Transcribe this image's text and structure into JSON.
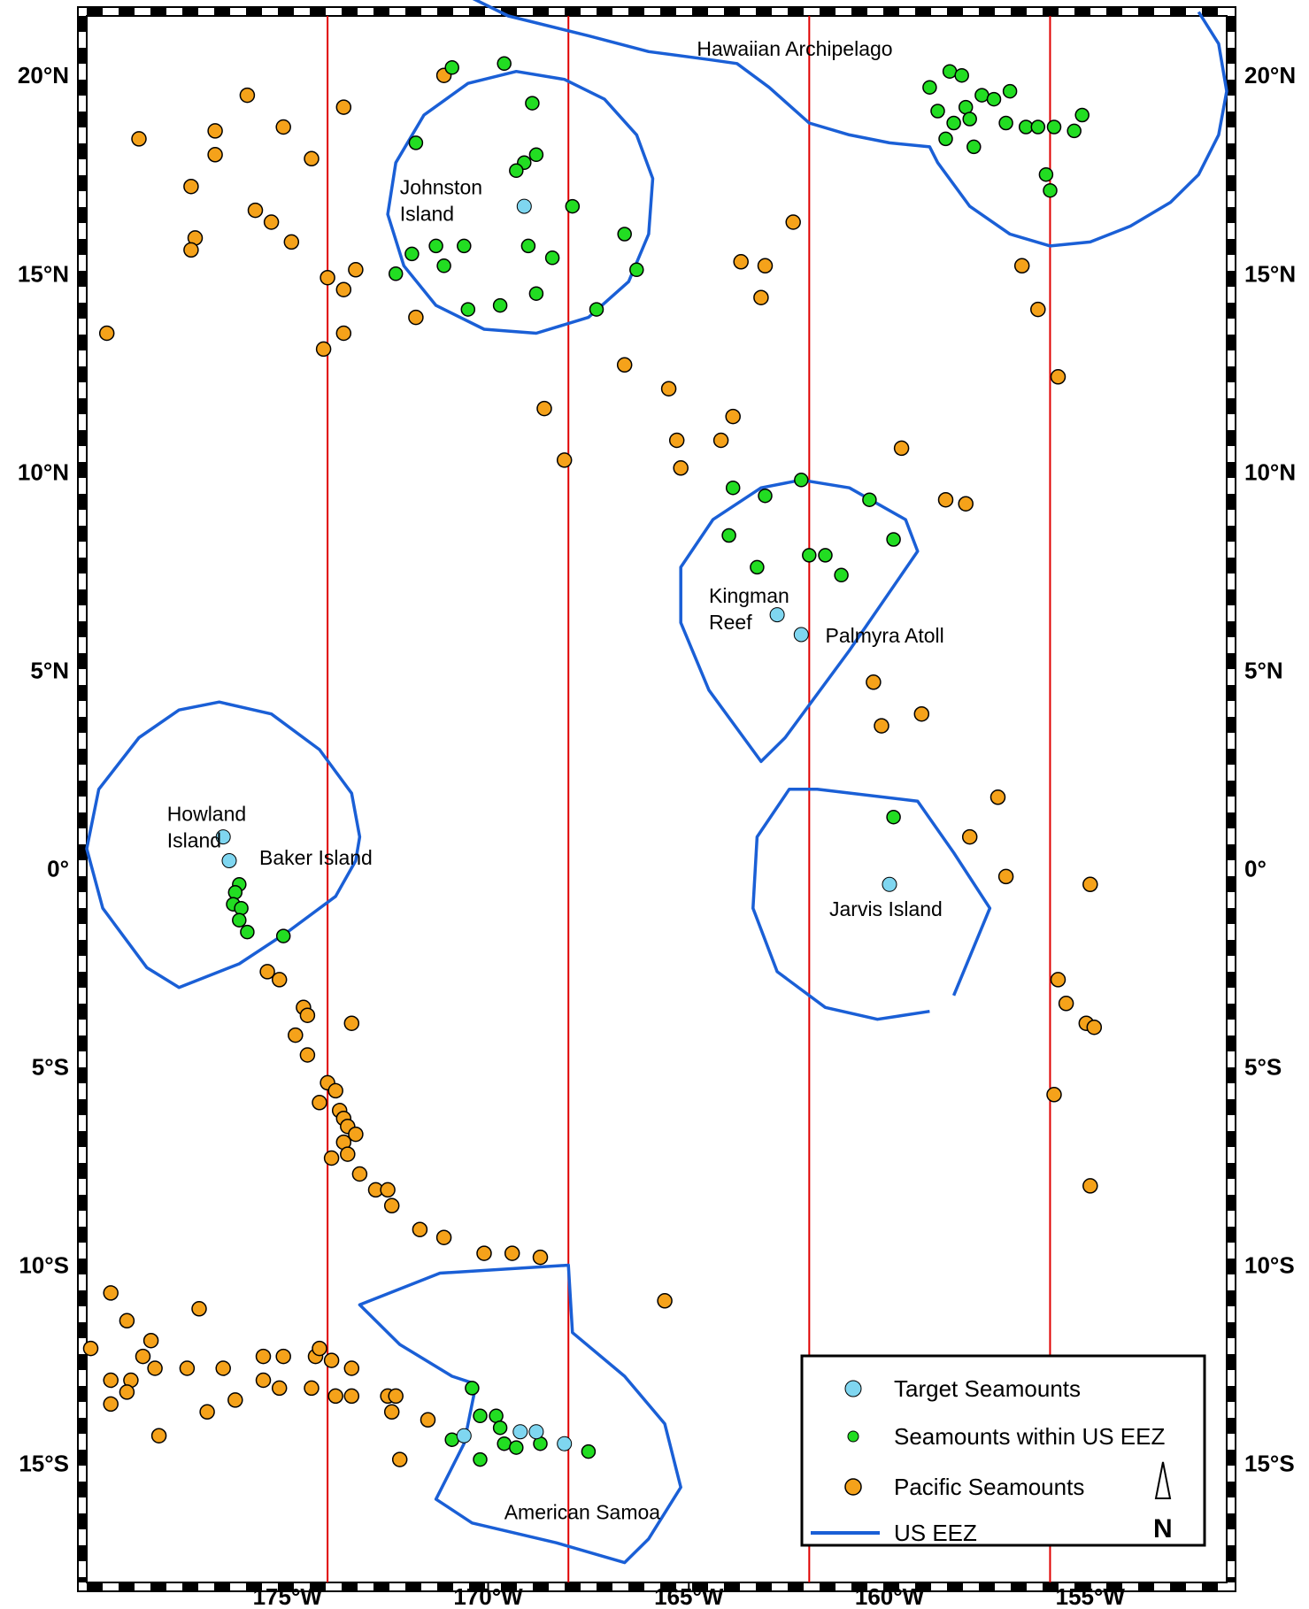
{
  "map": {
    "lon_range": [
      -180.0,
      -151.6
    ],
    "lat_range": [
      -18.0,
      21.5
    ],
    "lon_ticks": [
      {
        "lon": -175,
        "label": "175°W"
      },
      {
        "lon": -170,
        "label": "170°W"
      },
      {
        "lon": -165,
        "label": "165°W"
      },
      {
        "lon": -160,
        "label": "160°W"
      },
      {
        "lon": -155,
        "label": "155°W"
      }
    ],
    "lat_ticks": [
      {
        "lat": 20,
        "label": "20°N"
      },
      {
        "lat": 15,
        "label": "15°N"
      },
      {
        "lat": 10,
        "label": "10°N"
      },
      {
        "lat": 5,
        "label": "5°N"
      },
      {
        "lat": 0,
        "label": "0°"
      },
      {
        "lat": -5,
        "label": "5°S"
      },
      {
        "lat": -10,
        "label": "10°S"
      },
      {
        "lat": -15,
        "label": "15°S"
      }
    ],
    "meridian_lines_lon": [
      -174,
      -168,
      -162,
      -156
    ],
    "colors": {
      "eez": "#1a5fd6",
      "meridian": "#e00000",
      "target": "#7fd6f0",
      "us_eez_seamount": "#22dd22",
      "pacific_seamount": "#f5a21a",
      "frame": "#000000"
    },
    "place_labels": [
      {
        "id": "hawaiian-archipelago",
        "lines": [
          "Hawaiian Archipelago"
        ],
        "lon": -164.8,
        "lat": 20.5
      },
      {
        "id": "johnston-island",
        "lines": [
          "Johnston",
          "Island"
        ],
        "lon": -172.2,
        "lat": 17.0
      },
      {
        "id": "kingman-reef",
        "lines": [
          "Kingman",
          "Reef"
        ],
        "lon": -164.5,
        "lat": 6.7
      },
      {
        "id": "palmyra-atoll",
        "lines": [
          "Palmyra Atoll"
        ],
        "lon": -161.6,
        "lat": 5.7
      },
      {
        "id": "howland-island",
        "lines": [
          "Howland",
          "Island"
        ],
        "lon": -178.0,
        "lat": 1.2
      },
      {
        "id": "baker-island",
        "lines": [
          "Baker Island"
        ],
        "lon": -175.7,
        "lat": 0.1
      },
      {
        "id": "jarvis-island",
        "lines": [
          "Jarvis Island"
        ],
        "lon": -161.5,
        "lat": -1.2
      },
      {
        "id": "american-samoa",
        "lines": [
          "American Samoa"
        ],
        "lon": -169.6,
        "lat": -16.4
      }
    ],
    "legend": {
      "position": "bottom-right",
      "items": [
        {
          "symbol": "target",
          "label": "Target Seamounts"
        },
        {
          "symbol": "us_eez_seamount",
          "label": "Seamounts within US EEZ"
        },
        {
          "symbol": "pacific_seamount",
          "label": "Pacific Seamounts"
        },
        {
          "symbol": "eez",
          "label": "US EEZ"
        }
      ]
    },
    "north_arrow": "N",
    "eez_outlines": [
      {
        "id": "eez-hawaii",
        "closed": false,
        "points": [
          [
            -170.5,
            22.0
          ],
          [
            -169.5,
            21.5
          ],
          [
            -167.5,
            21.0
          ],
          [
            -166.0,
            20.6
          ],
          [
            -164.5,
            20.4
          ],
          [
            -163.8,
            20.3
          ],
          [
            -163.0,
            19.7
          ],
          [
            -162.0,
            18.8
          ],
          [
            -161.0,
            18.5
          ],
          [
            -160.0,
            18.3
          ],
          [
            -159.0,
            18.2
          ],
          [
            -158.8,
            17.8
          ],
          [
            -158.0,
            16.7
          ],
          [
            -157.0,
            16.0
          ],
          [
            -156.0,
            15.7
          ],
          [
            -155.0,
            15.8
          ],
          [
            -154.0,
            16.2
          ],
          [
            -153.0,
            16.8
          ],
          [
            -152.3,
            17.5
          ],
          [
            -151.8,
            18.5
          ],
          [
            -151.6,
            19.6
          ],
          [
            -151.8,
            20.8
          ],
          [
            -152.3,
            21.6
          ]
        ]
      },
      {
        "id": "eez-johnston",
        "closed": true,
        "points": [
          [
            -169.3,
            20.1
          ],
          [
            -168.1,
            19.9
          ],
          [
            -167.1,
            19.4
          ],
          [
            -166.3,
            18.5
          ],
          [
            -165.9,
            17.4
          ],
          [
            -166.0,
            16.0
          ],
          [
            -166.5,
            14.8
          ],
          [
            -167.5,
            13.9
          ],
          [
            -168.8,
            13.5
          ],
          [
            -170.1,
            13.6
          ],
          [
            -171.3,
            14.2
          ],
          [
            -172.1,
            15.2
          ],
          [
            -172.5,
            16.5
          ],
          [
            -172.3,
            17.8
          ],
          [
            -171.6,
            19.0
          ],
          [
            -170.5,
            19.8
          ]
        ]
      },
      {
        "id": "eez-kingman-palmyra",
        "closed": true,
        "points": [
          [
            -162.2,
            9.8
          ],
          [
            -161.0,
            9.6
          ],
          [
            -159.6,
            8.8
          ],
          [
            -159.3,
            8.0
          ],
          [
            -161.0,
            5.5
          ],
          [
            -162.6,
            3.3
          ],
          [
            -163.2,
            2.7
          ],
          [
            -164.5,
            4.5
          ],
          [
            -165.2,
            6.2
          ],
          [
            -165.2,
            7.6
          ],
          [
            -164.4,
            8.8
          ],
          [
            -163.2,
            9.6
          ]
        ]
      },
      {
        "id": "eez-jarvis",
        "closed": false,
        "points": [
          [
            -158.4,
            -3.2
          ],
          [
            -157.5,
            -1.0
          ],
          [
            -158.4,
            0.4
          ],
          [
            -159.3,
            1.7
          ],
          [
            -161.8,
            2.0
          ],
          [
            -162.5,
            2.0
          ],
          [
            -163.3,
            0.8
          ],
          [
            -163.4,
            -1.0
          ],
          [
            -162.8,
            -2.6
          ],
          [
            -161.6,
            -3.5
          ],
          [
            -160.3,
            -3.8
          ],
          [
            -159.0,
            -3.6
          ]
        ]
      },
      {
        "id": "eez-howland-baker",
        "closed": true,
        "points": [
          [
            -176.7,
            4.2
          ],
          [
            -175.4,
            3.9
          ],
          [
            -174.2,
            3.0
          ],
          [
            -173.4,
            1.9
          ],
          [
            -173.2,
            0.8
          ],
          [
            -173.3,
            0.2
          ],
          [
            -173.8,
            -0.7
          ],
          [
            -175.0,
            -1.6
          ],
          [
            -176.2,
            -2.4
          ],
          [
            -177.7,
            -3.0
          ],
          [
            -178.5,
            -2.5
          ],
          [
            -179.6,
            -1.0
          ],
          [
            -180.0,
            0.5
          ],
          [
            -179.7,
            2.0
          ],
          [
            -178.7,
            3.3
          ],
          [
            -177.7,
            4.0
          ]
        ]
      },
      {
        "id": "eez-american-samoa",
        "closed": true,
        "points": [
          [
            -173.2,
            -11.0
          ],
          [
            -171.2,
            -10.2
          ],
          [
            -168.0,
            -10.0
          ],
          [
            -167.9,
            -11.7
          ],
          [
            -166.6,
            -12.8
          ],
          [
            -165.6,
            -14.0
          ],
          [
            -165.2,
            -15.6
          ],
          [
            -166.0,
            -16.9
          ],
          [
            -166.6,
            -17.5
          ],
          [
            -168.3,
            -17.0
          ],
          [
            -170.4,
            -16.5
          ],
          [
            -171.3,
            -15.9
          ],
          [
            -170.6,
            -14.5
          ],
          [
            -170.3,
            -13.0
          ],
          [
            -170.9,
            -12.8
          ],
          [
            -172.2,
            -12.0
          ]
        ]
      }
    ],
    "target_seamounts": [
      [
        -169.1,
        16.7
      ],
      [
        -162.8,
        6.4
      ],
      [
        -162.2,
        5.9
      ],
      [
        -176.6,
        0.8
      ],
      [
        -176.45,
        0.2
      ],
      [
        -160.0,
        -0.4
      ],
      [
        -170.6,
        -14.3
      ],
      [
        -169.2,
        -14.2
      ],
      [
        -168.8,
        -14.2
      ],
      [
        -168.1,
        -14.5
      ]
    ],
    "us_eez_seamounts": [
      [
        -169.6,
        20.3
      ],
      [
        -170.9,
        20.2
      ],
      [
        -168.9,
        19.3
      ],
      [
        -171.8,
        18.3
      ],
      [
        -169.1,
        17.8
      ],
      [
        -168.8,
        18.0
      ],
      [
        -169.3,
        17.6
      ],
      [
        -167.9,
        16.7
      ],
      [
        -166.6,
        16.0
      ],
      [
        -166.3,
        15.1
      ],
      [
        -167.3,
        14.1
      ],
      [
        -168.4,
        15.4
      ],
      [
        -169.0,
        15.7
      ],
      [
        -170.6,
        15.7
      ],
      [
        -171.3,
        15.7
      ],
      [
        -171.1,
        15.2
      ],
      [
        -171.9,
        15.5
      ],
      [
        -172.3,
        15.0
      ],
      [
        -170.5,
        14.1
      ],
      [
        -169.7,
        14.2
      ],
      [
        -168.8,
        14.5
      ],
      [
        -158.5,
        20.1
      ],
      [
        -158.2,
        20.0
      ],
      [
        -159.0,
        19.7
      ],
      [
        -158.8,
        19.1
      ],
      [
        -158.1,
        19.2
      ],
      [
        -157.7,
        19.5
      ],
      [
        -157.4,
        19.4
      ],
      [
        -157.0,
        19.6
      ],
      [
        -158.4,
        18.8
      ],
      [
        -158.0,
        18.9
      ],
      [
        -157.1,
        18.8
      ],
      [
        -156.6,
        18.7
      ],
      [
        -156.3,
        18.7
      ],
      [
        -155.9,
        18.7
      ],
      [
        -155.4,
        18.6
      ],
      [
        -155.2,
        19.0
      ],
      [
        -158.6,
        18.4
      ],
      [
        -157.9,
        18.2
      ],
      [
        -156.1,
        17.5
      ],
      [
        -156.0,
        17.1
      ],
      [
        -163.9,
        9.6
      ],
      [
        -163.1,
        9.4
      ],
      [
        -162.2,
        9.8
      ],
      [
        -160.5,
        9.3
      ],
      [
        -164.0,
        8.4
      ],
      [
        -159.9,
        8.3
      ],
      [
        -162.0,
        7.9
      ],
      [
        -161.6,
        7.9
      ],
      [
        -163.3,
        7.6
      ],
      [
        -161.2,
        7.4
      ],
      [
        -159.9,
        1.3
      ],
      [
        -176.2,
        -0.4
      ],
      [
        -176.3,
        -0.6
      ],
      [
        -176.35,
        -0.9
      ],
      [
        -176.15,
        -1.0
      ],
      [
        -176.2,
        -1.3
      ],
      [
        -176.0,
        -1.6
      ],
      [
        -175.1,
        -1.7
      ],
      [
        -170.4,
        -13.1
      ],
      [
        -170.2,
        -13.8
      ],
      [
        -169.8,
        -13.8
      ],
      [
        -169.7,
        -14.1
      ],
      [
        -170.9,
        -14.4
      ],
      [
        -169.6,
        -14.5
      ],
      [
        -169.3,
        -14.6
      ],
      [
        -168.7,
        -14.5
      ],
      [
        -170.2,
        -14.9
      ],
      [
        -167.5,
        -14.7
      ]
    ],
    "pacific_seamounts": [
      [
        -171.1,
        20.0
      ],
      [
        -176.0,
        19.5
      ],
      [
        -173.6,
        19.2
      ],
      [
        -175.1,
        18.7
      ],
      [
        -176.8,
        18.6
      ],
      [
        -178.7,
        18.4
      ],
      [
        -176.8,
        18.0
      ],
      [
        -174.4,
        17.9
      ],
      [
        -177.4,
        17.2
      ],
      [
        -175.8,
        16.6
      ],
      [
        -175.4,
        16.3
      ],
      [
        -174.9,
        15.8
      ],
      [
        -177.3,
        15.9
      ],
      [
        -177.4,
        15.6
      ],
      [
        -174.0,
        14.9
      ],
      [
        -173.3,
        15.1
      ],
      [
        -173.6,
        14.6
      ],
      [
        -171.8,
        13.9
      ],
      [
        -173.6,
        13.5
      ],
      [
        -179.5,
        13.5
      ],
      [
        -174.1,
        13.1
      ],
      [
        -162.4,
        16.3
      ],
      [
        -163.7,
        15.3
      ],
      [
        -163.1,
        15.2
      ],
      [
        -163.2,
        14.4
      ],
      [
        -166.6,
        12.7
      ],
      [
        -165.5,
        12.1
      ],
      [
        -168.6,
        11.6
      ],
      [
        -163.9,
        11.4
      ],
      [
        -165.3,
        10.8
      ],
      [
        -164.2,
        10.8
      ],
      [
        -165.2,
        10.1
      ],
      [
        -168.1,
        10.3
      ],
      [
        -159.7,
        10.6
      ],
      [
        -158.6,
        9.3
      ],
      [
        -158.1,
        9.2
      ],
      [
        -160.4,
        4.7
      ],
      [
        -160.2,
        3.6
      ],
      [
        -159.2,
        3.9
      ],
      [
        -157.3,
        1.8
      ],
      [
        -158.0,
        0.8
      ],
      [
        -157.1,
        -0.2
      ],
      [
        -155.0,
        -0.4
      ],
      [
        -156.7,
        15.2
      ],
      [
        -156.3,
        14.1
      ],
      [
        -155.8,
        12.4
      ],
      [
        -155.8,
        -2.8
      ],
      [
        -155.6,
        -3.4
      ],
      [
        -155.1,
        -3.9
      ],
      [
        -154.9,
        -4.0
      ],
      [
        -155.9,
        -5.7
      ],
      [
        -155.0,
        -8.0
      ],
      [
        -175.5,
        -2.6
      ],
      [
        -175.2,
        -2.8
      ],
      [
        -174.6,
        -3.5
      ],
      [
        -174.5,
        -3.7
      ],
      [
        -174.8,
        -4.2
      ],
      [
        -174.5,
        -4.7
      ],
      [
        -173.4,
        -3.9
      ],
      [
        -174.0,
        -5.4
      ],
      [
        -173.8,
        -5.6
      ],
      [
        -174.2,
        -5.9
      ],
      [
        -173.7,
        -6.1
      ],
      [
        -173.6,
        -6.3
      ],
      [
        -173.5,
        -6.5
      ],
      [
        -173.3,
        -6.7
      ],
      [
        -173.6,
        -6.9
      ],
      [
        -173.5,
        -7.2
      ],
      [
        -173.9,
        -7.3
      ],
      [
        -173.2,
        -7.7
      ],
      [
        -172.8,
        -8.1
      ],
      [
        -172.5,
        -8.1
      ],
      [
        -172.4,
        -8.5
      ],
      [
        -171.7,
        -9.1
      ],
      [
        -171.1,
        -9.3
      ],
      [
        -170.1,
        -9.7
      ],
      [
        -169.4,
        -9.7
      ],
      [
        -168.7,
        -9.8
      ],
      [
        -165.6,
        -10.9
      ],
      [
        -179.4,
        -10.7
      ],
      [
        -177.2,
        -11.1
      ],
      [
        -179.0,
        -11.4
      ],
      [
        -178.4,
        -11.9
      ],
      [
        -179.9,
        -12.1
      ],
      [
        -178.6,
        -12.3
      ],
      [
        -178.3,
        -12.6
      ],
      [
        -177.5,
        -12.6
      ],
      [
        -176.6,
        -12.6
      ],
      [
        -175.6,
        -12.3
      ],
      [
        -175.1,
        -12.3
      ],
      [
        -174.3,
        -12.3
      ],
      [
        -174.2,
        -12.1
      ],
      [
        -173.9,
        -12.4
      ],
      [
        -173.4,
        -12.6
      ],
      [
        -179.4,
        -12.9
      ],
      [
        -178.9,
        -12.9
      ],
      [
        -175.6,
        -12.9
      ],
      [
        -175.2,
        -13.1
      ],
      [
        -174.4,
        -13.1
      ],
      [
        -173.8,
        -13.3
      ],
      [
        -173.4,
        -13.3
      ],
      [
        -172.5,
        -13.3
      ],
      [
        -172.3,
        -13.3
      ],
      [
        -179.0,
        -13.2
      ],
      [
        -179.4,
        -13.5
      ],
      [
        -176.3,
        -13.4
      ],
      [
        -172.4,
        -13.7
      ],
      [
        -177.0,
        -13.7
      ],
      [
        -178.2,
        -14.3
      ],
      [
        -171.5,
        -13.9
      ],
      [
        -172.2,
        -14.9
      ]
    ]
  }
}
